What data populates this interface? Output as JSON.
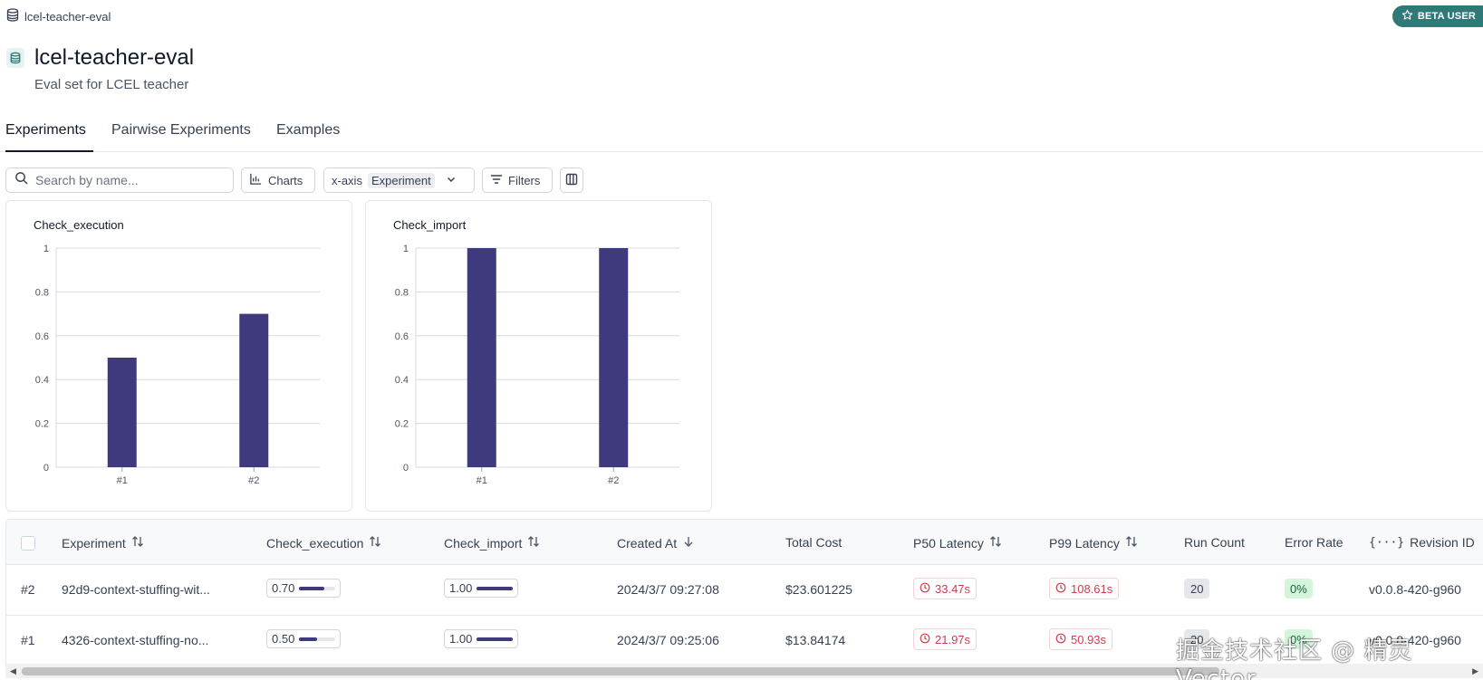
{
  "app": {
    "breadcrumb": "lcel-teacher-eval",
    "beta_badge": "BETA USER"
  },
  "header": {
    "title": "lcel-teacher-eval",
    "subtitle": "Eval set for LCEL teacher"
  },
  "tabs": [
    {
      "label": "Experiments",
      "active": true
    },
    {
      "label": "Pairwise Experiments",
      "active": false
    },
    {
      "label": "Examples",
      "active": false
    }
  ],
  "toolbar": {
    "search_placeholder": "Search by name...",
    "charts_label": "Charts",
    "xaxis_label": "x-axis",
    "xaxis_value": "Experiment",
    "filters_label": "Filters"
  },
  "chart_data": [
    {
      "type": "bar",
      "title": "Check_execution",
      "categories": [
        "#1",
        "#2"
      ],
      "values": [
        0.5,
        0.7
      ],
      "ylim": [
        0,
        1
      ],
      "yticks": [
        "0",
        "0.2",
        "0.4",
        "0.6",
        "0.8",
        "1"
      ],
      "color": "#3f3a7d",
      "grid": true
    },
    {
      "type": "bar",
      "title": "Check_import",
      "categories": [
        "#1",
        "#2"
      ],
      "values": [
        1.0,
        1.0
      ],
      "ylim": [
        0,
        1
      ],
      "yticks": [
        "0",
        "0.2",
        "0.4",
        "0.6",
        "0.8",
        "1"
      ],
      "color": "#3f3a7d",
      "grid": true
    }
  ],
  "table": {
    "headers": {
      "experiment": "Experiment",
      "check_execution": "Check_execution",
      "check_import": "Check_import",
      "created_at": "Created At",
      "total_cost": "Total Cost",
      "p50": "P50 Latency",
      "p99": "P99 Latency",
      "run_count": "Run Count",
      "error_rate": "Error Rate",
      "revision": "Revision ID"
    },
    "rows": [
      {
        "id": "#2",
        "experiment": "92d9-context-stuffing-wit...",
        "check_execution": "0.70",
        "check_execution_fraction": 0.7,
        "check_import": "1.00",
        "check_import_fraction": 1.0,
        "created_at": "2024/3/7 09:27:08",
        "total_cost": "$23.601225",
        "p50": "33.47s",
        "p99": "108.61s",
        "run_count": "20",
        "error_rate": "0%",
        "revision": "v0.0.8-420-g960"
      },
      {
        "id": "#1",
        "experiment": "4326-context-stuffing-no...",
        "check_execution": "0.50",
        "check_execution_fraction": 0.5,
        "check_import": "1.00",
        "check_import_fraction": 1.0,
        "created_at": "2024/3/7 09:25:06",
        "total_cost": "$13.84174",
        "p50": "21.97s",
        "p99": "50.93s",
        "run_count": "20",
        "error_rate": "0%",
        "revision": "v0.0.8-420-g960"
      }
    ]
  },
  "watermark": "掘金技术社区 @ 精灵Vector"
}
